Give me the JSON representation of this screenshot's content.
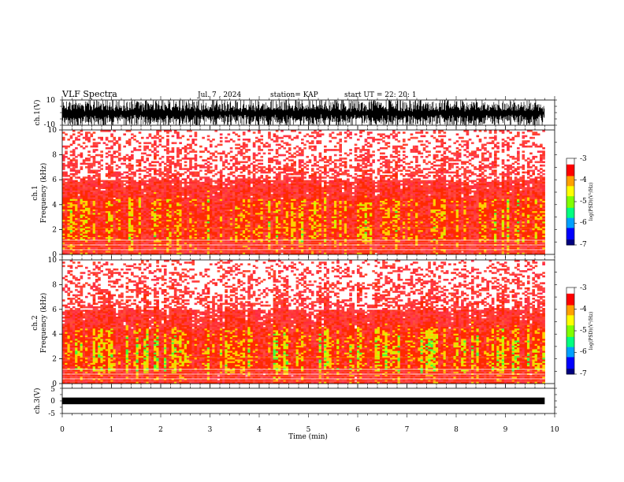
{
  "header": {
    "title": "VLF Spectra",
    "date": "Jul. 7 , 2024",
    "station": "station= KAP",
    "start": "start UT = 22: 20: 1"
  },
  "colors": {
    "spectrogram_scale": [
      "#000080",
      "#0000ff",
      "#00a0ff",
      "#00ff80",
      "#80ff00",
      "#ffff00",
      "#ffa000",
      "#ff0000",
      "#ffffff"
    ],
    "waveform": "#000000"
  },
  "chart_data": [
    {
      "type": "line",
      "name": "ch1-waveform",
      "ylabel": "ch.1(V)",
      "ylim": [
        -10,
        10
      ],
      "yticks": [
        "10",
        "-10"
      ],
      "xlim": [
        0,
        10
      ]
    },
    {
      "type": "heatmap",
      "name": "ch1-spectrogram",
      "ylabel_line1": "ch.1",
      "ylabel_line2": "Frequency (kHz)",
      "ylim": [
        0,
        10
      ],
      "yticks": [
        "10",
        "8",
        "6",
        "4",
        "2",
        "0"
      ],
      "xlim": [
        0,
        10
      ],
      "data_extent_min": 9.8,
      "colorbar": {
        "label": "log(PSD)(V²/Hz)",
        "range": [
          -7,
          -3
        ],
        "ticks": [
          "-3",
          "-4",
          "-5",
          "-6",
          "-7"
        ]
      }
    },
    {
      "type": "heatmap",
      "name": "ch2-spectrogram",
      "ylabel_line1": "ch.2",
      "ylabel_line2": "Frequency (kHz)",
      "ylim": [
        0,
        10
      ],
      "yticks": [
        "10",
        "8",
        "6",
        "4",
        "2",
        "0"
      ],
      "xlim": [
        0,
        10
      ],
      "data_extent_min": 9.8,
      "colorbar": {
        "label": "log(PSD)(V²/Hz)",
        "range": [
          -7,
          -3
        ],
        "ticks": [
          "-3",
          "-4",
          "-5",
          "-6",
          "-7"
        ]
      }
    },
    {
      "type": "line",
      "name": "ch3-waveform",
      "ylabel": "ch.3(V)",
      "ylim": [
        -5,
        5
      ],
      "yticks": [
        "5",
        "0",
        "-5"
      ],
      "xlim": [
        0,
        10
      ],
      "xlabel": "Time (min)",
      "xticks": [
        "0",
        "1",
        "2",
        "3",
        "4",
        "5",
        "6",
        "7",
        "8",
        "9",
        "10"
      ]
    }
  ]
}
